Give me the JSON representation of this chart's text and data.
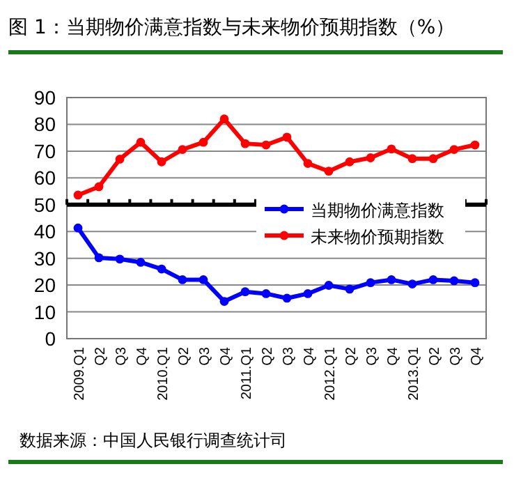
{
  "chart_data": {
    "type": "line",
    "title": "图 1：当期物价满意指数与未来物价预期指数（%）",
    "categories": [
      "2009.Q1",
      "Q2",
      "Q3",
      "Q4",
      "2010.Q1",
      "Q2",
      "Q3",
      "Q4",
      "2011.Q1",
      "Q2",
      "Q3",
      "Q4",
      "2012.Q1",
      "Q2",
      "Q3",
      "Q4",
      "2013.Q1",
      "Q2",
      "Q3",
      "Q4"
    ],
    "series": [
      {
        "name": "当期物价满意指数",
        "color": "#0000ff",
        "values": [
          41.3,
          30.2,
          29.7,
          28.5,
          26,
          22,
          22,
          13.9,
          17.5,
          16.8,
          15.1,
          16.8,
          19.9,
          18.5,
          20.9,
          22,
          20.4,
          22,
          21.6,
          20.9
        ]
      },
      {
        "name": "未来物价预期指数",
        "color": "#ff0000",
        "values": [
          53.6,
          56.7,
          67,
          73.3,
          66,
          70.6,
          73.3,
          82,
          72.8,
          72.3,
          75.2,
          65.4,
          62.5,
          66,
          67.5,
          70.8,
          67.2,
          67.2,
          70.6,
          72.3
        ]
      }
    ],
    "ylim": [
      0,
      90
    ],
    "yticks": [
      0,
      10,
      20,
      30,
      40,
      50,
      60,
      70,
      80,
      90
    ],
    "grid": "y",
    "marker": "circle",
    "line_style": "solid",
    "legend": "right",
    "ref_lines": [
      {
        "axis": "y",
        "value": 50,
        "color": "#000000"
      }
    ],
    "annotations": [
      "数据来源：中国人民银行调查统计司"
    ]
  }
}
